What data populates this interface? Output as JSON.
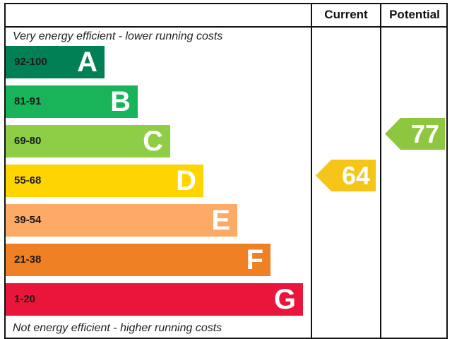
{
  "chart_data": {
    "type": "table",
    "header": {
      "current": "Current",
      "potential": "Potential"
    },
    "top_caption": "Very energy efficient - lower running costs",
    "bottom_caption": "Not energy efficient - higher running costs",
    "bands": [
      {
        "range": "92-100",
        "letter": "A",
        "color": "#008054"
      },
      {
        "range": "81-91",
        "letter": "B",
        "color": "#19b459"
      },
      {
        "range": "69-80",
        "letter": "C",
        "color": "#8dce46"
      },
      {
        "range": "55-68",
        "letter": "D",
        "color": "#ffd500"
      },
      {
        "range": "39-54",
        "letter": "E",
        "color": "#fcaa65"
      },
      {
        "range": "21-38",
        "letter": "F",
        "color": "#ef8023"
      },
      {
        "range": "1-20",
        "letter": "G",
        "color": "#e9153b"
      }
    ],
    "current": {
      "value": 64,
      "band": "D",
      "color": "#f5c518"
    },
    "potential": {
      "value": 77,
      "band": "C",
      "color": "#8dc63f"
    }
  }
}
